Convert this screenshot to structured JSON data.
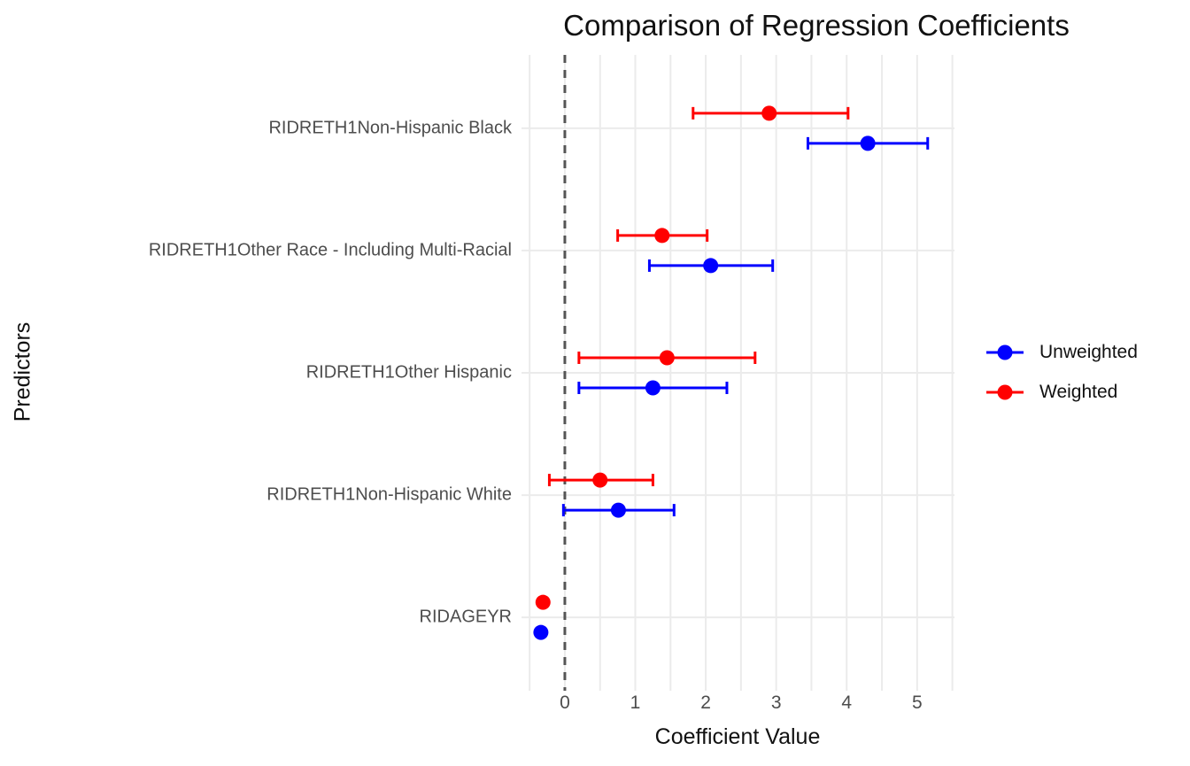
{
  "figure": {
    "title": "Comparison of Regression Coefficients",
    "x_axis_label": "Coefficient Value",
    "y_axis_label": "Predictors"
  },
  "legend": {
    "position": "right",
    "items": [
      {
        "label": "Unweighted",
        "color": "#0000ff"
      },
      {
        "label": "Weighted",
        "color": "#ff0000"
      }
    ]
  },
  "style": {
    "background": "#ffffff",
    "grid_color": "#ebebeb",
    "axis_text_color": "#4d4d4d",
    "title_color": "#111111",
    "zero_line_color": "#555555"
  },
  "chart_data": {
    "type": "scatter",
    "subtype": "dot-whisker-coefficient-plot",
    "title": "Comparison of Regression Coefficients",
    "xlabel": "Coefficient Value",
    "ylabel": "Predictors",
    "xlim": [
      -0.615,
      5.53
    ],
    "x_ticks": [
      0,
      1,
      2,
      3,
      4,
      5
    ],
    "x_gridline_step": 0.5,
    "zero_reference_line": 0,
    "grid": true,
    "legend_position": "right",
    "categories": [
      "RIDRETH1Non-Hispanic Black",
      "RIDRETH1Other Race - Including Multi-Racial",
      "RIDRETH1Other Hispanic",
      "RIDRETH1Non-Hispanic White",
      "RIDAGEYR"
    ],
    "series": [
      {
        "name": "Weighted",
        "color": "#ff0000",
        "dodge": "above",
        "points": [
          {
            "category": "RIDRETH1Non-Hispanic Black",
            "estimate": 2.9,
            "ci_low": 1.82,
            "ci_high": 4.02
          },
          {
            "category": "RIDRETH1Other Race - Including Multi-Racial",
            "estimate": 1.38,
            "ci_low": 0.75,
            "ci_high": 2.02
          },
          {
            "category": "RIDRETH1Other Hispanic",
            "estimate": 1.45,
            "ci_low": 0.2,
            "ci_high": 2.7
          },
          {
            "category": "RIDRETH1Non-Hispanic White",
            "estimate": 0.5,
            "ci_low": -0.22,
            "ci_high": 1.25
          },
          {
            "category": "RIDAGEYR",
            "estimate": -0.31,
            "ci_low": -0.33,
            "ci_high": -0.29
          }
        ]
      },
      {
        "name": "Unweighted",
        "color": "#0000ff",
        "dodge": "below",
        "points": [
          {
            "category": "RIDRETH1Non-Hispanic Black",
            "estimate": 4.3,
            "ci_low": 3.45,
            "ci_high": 5.15
          },
          {
            "category": "RIDRETH1Other Race - Including Multi-Racial",
            "estimate": 2.07,
            "ci_low": 1.2,
            "ci_high": 2.95
          },
          {
            "category": "RIDRETH1Other Hispanic",
            "estimate": 1.25,
            "ci_low": 0.2,
            "ci_high": 2.3
          },
          {
            "category": "RIDRETH1Non-Hispanic White",
            "estimate": 0.76,
            "ci_low": -0.02,
            "ci_high": 1.55
          },
          {
            "category": "RIDAGEYR",
            "estimate": -0.34,
            "ci_low": -0.36,
            "ci_high": -0.32
          }
        ]
      }
    ]
  }
}
